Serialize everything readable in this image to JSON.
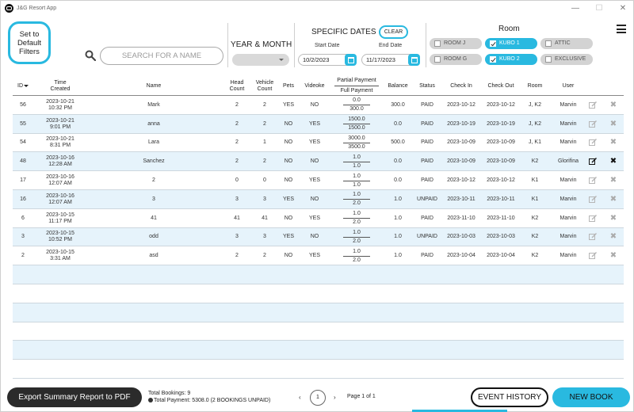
{
  "window": {
    "title": "J&G Resort App",
    "min": "—",
    "max": "☐",
    "close": "✕"
  },
  "toolbar": {
    "default_filters_label": "Set to\nDefault\nFilters",
    "search_placeholder": "SEARCH FOR A NAME",
    "year_month_label": "YEAR & MONTH",
    "year_month_value": "",
    "specific_dates_label": "SPECIFIC DATES",
    "clear_label": "CLEAR",
    "start_date_label": "Start Date",
    "end_date_label": "End Date",
    "start_date": "10/2/2023",
    "end_date": "11/17/2023",
    "room_label": "Room",
    "rooms": [
      {
        "label": "ROOM J",
        "checked": false
      },
      {
        "label": "KUBO 1",
        "checked": true
      },
      {
        "label": "ATTIC",
        "checked": false
      },
      {
        "label": "ROOM G",
        "checked": false
      },
      {
        "label": "KUBO 2",
        "checked": true
      },
      {
        "label": "EXCLUSIVE",
        "checked": false
      }
    ]
  },
  "table": {
    "headers": {
      "id": "ID",
      "time": "Time\nCreated",
      "name": "Name",
      "head": "Head\nCount",
      "vehicle": "Vehicle\nCount",
      "pets": "Pets",
      "videoke": "Videoke",
      "partial": "Partial Payment",
      "full": "Full Payment",
      "balance": "Balance",
      "status": "Status",
      "checkin": "Check In",
      "checkout": "Check Out",
      "room": "Room",
      "user": "User"
    },
    "rows": [
      {
        "id": "56",
        "time": "2023-10-21\n10:32 PM",
        "name": "Mark",
        "head": "2",
        "vehicle": "2",
        "pets": "YES",
        "videoke": "NO",
        "partial": "0.0",
        "full": "300.0",
        "balance": "300.0",
        "status": "PAID",
        "checkin": "2023-10-12",
        "checkout": "2023-10-12",
        "room": "J, K2",
        "user": "Marvin"
      },
      {
        "id": "55",
        "time": "2023-10-21\n9:01 PM",
        "name": "anna",
        "head": "2",
        "vehicle": "2",
        "pets": "NO",
        "videoke": "YES",
        "partial": "1500.0",
        "full": "1500.0",
        "balance": "0.0",
        "status": "PAID",
        "checkin": "2023-10-19",
        "checkout": "2023-10-19",
        "room": "J, K2",
        "user": "Marvin"
      },
      {
        "id": "54",
        "time": "2023-10-21\n8:31 PM",
        "name": "Lara",
        "head": "2",
        "vehicle": "1",
        "pets": "NO",
        "videoke": "YES",
        "partial": "3000.0",
        "full": "3500.0",
        "balance": "500.0",
        "status": "PAID",
        "checkin": "2023-10-09",
        "checkout": "2023-10-09",
        "room": "J, K1",
        "user": "Marvin"
      },
      {
        "id": "48",
        "time": "2023-10-16\n12:28 AM",
        "name": "Sanchez",
        "head": "2",
        "vehicle": "2",
        "pets": "NO",
        "videoke": "NO",
        "partial": "1.0",
        "full": "1.0",
        "balance": "0.0",
        "status": "PAID",
        "checkin": "2023-10-09",
        "checkout": "2023-10-09",
        "room": "K2",
        "user": "Glorifina"
      },
      {
        "id": "17",
        "time": "2023-10-16\n12:07 AM",
        "name": "2",
        "head": "0",
        "vehicle": "0",
        "pets": "NO",
        "videoke": "YES",
        "partial": "1.0",
        "full": "1.0",
        "balance": "0.0",
        "status": "PAID",
        "checkin": "2023-10-12",
        "checkout": "2023-10-12",
        "room": "K1",
        "user": "Marvin"
      },
      {
        "id": "16",
        "time": "2023-10-16\n12:07 AM",
        "name": "3",
        "head": "3",
        "vehicle": "3",
        "pets": "YES",
        "videoke": "NO",
        "partial": "1.0",
        "full": "2.0",
        "balance": "1.0",
        "status": "UNPAID",
        "checkin": "2023-10-11",
        "checkout": "2023-10-11",
        "room": "K1",
        "user": "Marvin"
      },
      {
        "id": "6",
        "time": "2023-10-15\n11:17 PM",
        "name": "41",
        "head": "41",
        "vehicle": "41",
        "pets": "NO",
        "videoke": "YES",
        "partial": "1.0",
        "full": "2.0",
        "balance": "1.0",
        "status": "PAID",
        "checkin": "2023-11-10",
        "checkout": "2023-11-10",
        "room": "K2",
        "user": "Marvin"
      },
      {
        "id": "3",
        "time": "2023-10-15\n10:52 PM",
        "name": "odd",
        "head": "3",
        "vehicle": "3",
        "pets": "YES",
        "videoke": "NO",
        "partial": "1.0",
        "full": "2.0",
        "balance": "1.0",
        "status": "UNPAID",
        "checkin": "2023-10-03",
        "checkout": "2023-10-03",
        "room": "K2",
        "user": "Marvin"
      },
      {
        "id": "2",
        "time": "2023-10-15\n3:31 AM",
        "name": "asd",
        "head": "2",
        "vehicle": "2",
        "pets": "NO",
        "videoke": "YES",
        "partial": "1.0",
        "full": "2.0",
        "balance": "1.0",
        "status": "PAID",
        "checkin": "2023-10-04",
        "checkout": "2023-10-04",
        "room": "K2",
        "user": "Marvin"
      }
    ],
    "highlight_row_id": "48",
    "empty_rows": 6
  },
  "footer": {
    "export_label": "Export Summary Report to PDF",
    "total_bookings": "Total Bookings: 9",
    "total_payment": "Total Payment: 5308.0 (2 BOOKINGS UNPAID)",
    "page_current": "1",
    "page_text": "Page 1 of 1",
    "prev": "‹",
    "next": "›",
    "event_history_label": "EVENT HISTORY",
    "new_book_label": "NEW BOOK"
  },
  "colors": {
    "accent": "#29b9e0",
    "row_alt": "#e6f3fb",
    "dark_button": "#2b2b2b"
  }
}
